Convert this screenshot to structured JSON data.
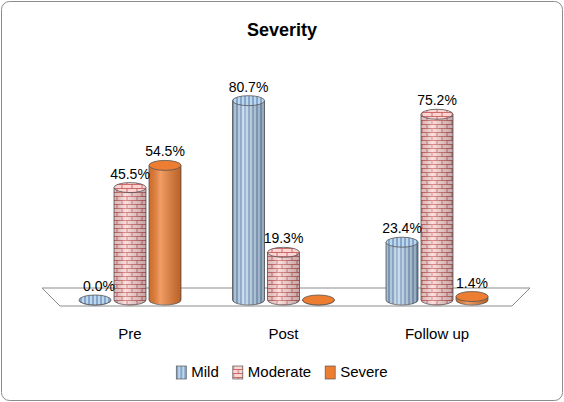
{
  "chart_data": {
    "type": "bar",
    "title": "Severity",
    "categories": [
      "Pre",
      "Post",
      "Follow up"
    ],
    "series": [
      {
        "name": "Mild",
        "color": "#bdd7ee",
        "values": [
          0.0,
          80.7,
          23.4
        ],
        "value_labels": [
          "0.0%",
          "80.7%",
          "23.4%"
        ]
      },
      {
        "name": "Moderate",
        "color": "#fbd4d4",
        "values": [
          45.5,
          19.3,
          75.2
        ],
        "value_labels": [
          "45.5%",
          "19.3%",
          "75.2%"
        ]
      },
      {
        "name": "Severe",
        "color": "#ed7d31",
        "values": [
          54.5,
          0.0,
          1.4
        ],
        "value_labels": [
          "54.5%",
          null,
          "1.4%"
        ]
      }
    ],
    "ylim": [
      0,
      100
    ],
    "data_labels": true,
    "tick_labels": false,
    "legend": "bottom"
  }
}
